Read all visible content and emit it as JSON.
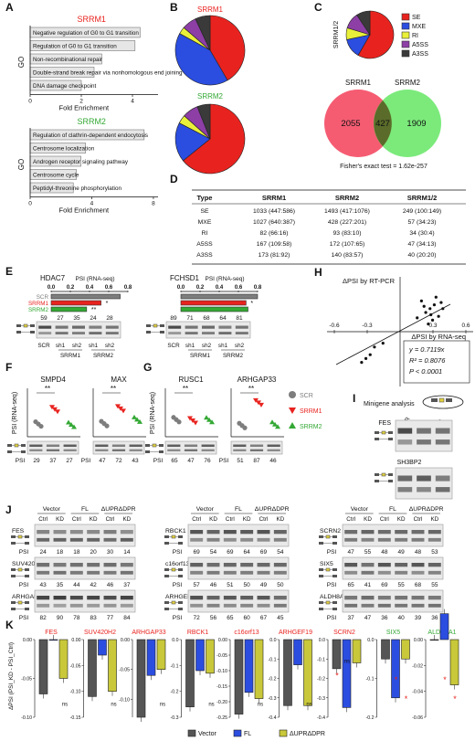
{
  "panel_letters": {
    "A": "A",
    "B": "B",
    "C": "C",
    "D": "D",
    "E": "E",
    "F": "F",
    "G": "G",
    "H": "H",
    "I": "I",
    "J": "J",
    "K": "K"
  },
  "colors": {
    "srrm1": "#e8231f",
    "srrm2": "#33a834",
    "scr": "#7d7d7d",
    "bar_fill": "#e6e6e6",
    "mxe": "#2b4de0",
    "ri": "#e9f03a",
    "a5ss": "#8d3fa6",
    "a3ss": "#3a3a3a",
    "vector": "#555555",
    "fl": "#2b4de0",
    "dupr": "#c9c83a"
  },
  "panelA": {
    "ylabel": "GO",
    "xlabel": "Fold Enrichment",
    "srrm1": {
      "title": "SRRM1",
      "ticks": [
        "0",
        "2",
        "4"
      ],
      "xmax": 5,
      "terms": [
        "Negative regulation of G0 to G1 transition",
        "Regulation of G0 to G1 transition",
        "Non-recombinational repair",
        "Double-strand break repair via nonhomologous end joining",
        "DNA damage checkpoint"
      ],
      "values": [
        4.3,
        4.1,
        2.8,
        2.5,
        2.0
      ]
    },
    "srrm2": {
      "title": "SRRM2",
      "ticks": [
        "0",
        "4",
        "8"
      ],
      "xmax": 8.3,
      "terms": [
        "Regulation of clathrin-dependent endocytosis",
        "Centrosome localization",
        "Androgen receptor signaling pathway",
        "Centrosome cycle",
        "Peptidyl-threonine phosphorylation"
      ],
      "values": [
        7.4,
        3.6,
        3.3,
        3.0,
        2.8
      ]
    }
  },
  "panelB": {
    "srrm1_title": "SRRM1",
    "srrm2_title": "SRRM2"
  },
  "panelC": {
    "ylabel": "SRRM1/2",
    "legend": [
      "SE",
      "MXE",
      "RI",
      "A5SS",
      "A3SS"
    ],
    "venn": {
      "left_title": "SRRM1",
      "right_title": "SRRM2",
      "left_only": "2055",
      "overlap": "427",
      "right_only": "1909"
    },
    "fisher": "Fisher's exact test = 1.62e-257"
  },
  "chart_data": [
    {
      "type": "pie",
      "title": "SRRM1",
      "categories": [
        "SE",
        "MXE",
        "RI",
        "A5SS",
        "A3SS"
      ],
      "values": [
        1033,
        1027,
        82,
        167,
        173
      ]
    },
    {
      "type": "pie",
      "title": "SRRM2",
      "categories": [
        "SE",
        "MXE",
        "RI",
        "A5SS",
        "A3SS"
      ],
      "values": [
        1493,
        428,
        93,
        172,
        140
      ]
    },
    {
      "type": "pie",
      "title": "",
      "categories": [
        "SE",
        "MXE",
        "RI",
        "A5SS",
        "A3SS"
      ],
      "values": [
        249,
        57,
        34,
        47,
        40
      ]
    },
    {
      "type": "bar",
      "title": "SRRM1",
      "categories": [
        "Negative regulation of G0 to G1 transition",
        "Regulation of G0 to G1 transition",
        "Non-recombinational repair",
        "Double-strand break repair via nonhomologous end joining",
        "DNA damage checkpoint"
      ],
      "values": [
        4.3,
        4.1,
        2.8,
        2.5,
        2.0
      ],
      "xlabel": "Fold Enrichment",
      "ylabel": "GO"
    },
    {
      "type": "bar",
      "title": "SRRM2",
      "categories": [
        "Regulation of clathrin-dependent endocytosis",
        "Centrosome localization",
        "Androgen receptor signaling pathway",
        "Centrosome cycle",
        "Peptidyl-threonine phosphorylation"
      ],
      "values": [
        7.4,
        3.6,
        3.3,
        3.0,
        2.8
      ],
      "xlabel": "Fold Enrichment",
      "ylabel": "GO"
    },
    {
      "type": "scatter",
      "title": "",
      "xlabel": "ΔPSI by RNA-seq",
      "ylabel": "ΔPSI by RT-PCR",
      "xlim": [
        -0.6,
        0.6
      ],
      "ylim": [
        -0.6,
        0.6
      ],
      "x": [
        0.35,
        0.4,
        0.45,
        0.3,
        0.25,
        0.5,
        0.38,
        0.42,
        0.2,
        -0.35,
        -0.4,
        -0.3,
        -0.45,
        0.33,
        0.28,
        -0.2,
        0.48,
        0.36
      ],
      "y": [
        0.3,
        0.35,
        0.2,
        0.25,
        0.4,
        0.3,
        0.15,
        0.45,
        0.18,
        -0.3,
        -0.35,
        -0.2,
        -0.4,
        0.1,
        0.33,
        -0.15,
        0.38,
        0.22
      ]
    },
    {
      "type": "bar",
      "title": "",
      "xlabel": "",
      "ylabel": "ΔPSI (PSI_KD - PSI_Ctrl)",
      "categories": [
        "FES",
        "SUV420H2",
        "ARHGAP33",
        "RBCK1",
        "c16orf13",
        "ARHGEF19",
        "SCRN2",
        "SIX5",
        "ALDH8A1"
      ],
      "series": [
        {
          "name": "Vector",
          "values": [
            -0.07,
            -0.11,
            -0.13,
            -0.26,
            -0.24,
            -0.34,
            -0.15,
            -0.05,
            0.0
          ]
        },
        {
          "name": "FL",
          "values": [
            0.0,
            -0.03,
            -0.06,
            -0.12,
            -0.17,
            -0.13,
            -0.35,
            -0.15,
            0.02
          ]
        },
        {
          "name": "ΔUPRΔDPR",
          "values": [
            -0.05,
            -0.1,
            -0.05,
            -0.13,
            -0.19,
            -0.34,
            -0.12,
            -0.05,
            -0.035
          ]
        }
      ]
    }
  ],
  "panelD": {
    "headers": [
      "Type",
      "SRRM1",
      "SRRM2",
      "SRRM1/2"
    ],
    "rows": [
      [
        "SE",
        "1033 (447:586)",
        "1493 (417:1076)",
        "249 (100:149)"
      ],
      [
        "MXE",
        "1027 (640:387)",
        "428 (227:201)",
        "57 (34:23)"
      ],
      [
        "RI",
        "82 (66:16)",
        "93 (83:10)",
        "34 (30:4)"
      ],
      [
        "A5SS",
        "167 (109:58)",
        "172 (107:65)",
        "47 (34:13)"
      ],
      [
        "A3SS",
        "173 (81:92)",
        "140 (83:57)",
        "40 (20:20)"
      ]
    ]
  },
  "panelE": {
    "axis_title": "PSI (RNA-seq)",
    "ticks": [
      "0.0",
      "0.2",
      "0.4",
      "0.6",
      "0.8"
    ],
    "legend": [
      "SCR",
      "SRRM1",
      "SRRM2"
    ],
    "hdac7": {
      "gene": "HDAC7",
      "values": [
        0.72,
        0.52,
        0.37
      ],
      "sig": [
        "",
        "*",
        "**"
      ],
      "psi": [
        "59",
        "27",
        "35",
        "24",
        "28"
      ]
    },
    "fchsd1": {
      "gene": "FCHSD1",
      "values": [
        0.8,
        0.68,
        0.7
      ],
      "sig": [
        "",
        "*",
        ""
      ],
      "psi": [
        "89",
        "71",
        "68",
        "64",
        "81"
      ]
    },
    "lanes": [
      "SCR",
      "sh1",
      "sh2",
      "sh1",
      "sh2"
    ],
    "groups": [
      "SRRM1",
      "SRRM2"
    ]
  },
  "panelF": {
    "ylabel": "PSI (RNA-seq)",
    "genes": [
      "SMPD4",
      "MAX"
    ],
    "sig": [
      "**",
      "**"
    ],
    "psi_label": "PSI",
    "psi": [
      [
        "29",
        "37",
        "27"
      ],
      [
        "47",
        "72",
        "43"
      ]
    ]
  },
  "panelG": {
    "ylabel": "PSI (RNA-seq)",
    "genes": [
      "RUSC1",
      "ARHGAP33"
    ],
    "sig": [
      "**",
      "**"
    ],
    "psi_label": "PSI",
    "psi": [
      [
        "65",
        "47",
        "76"
      ],
      [
        "51",
        "87",
        "46"
      ]
    ],
    "legend": [
      "SCR",
      "SRRM1",
      "SRRM2"
    ]
  },
  "panelH": {
    "ylabel": "ΔPSI by RT-PCR",
    "xlabel": "ΔPSI by RNA-seq",
    "ticks": [
      "-0.6",
      "-0.3",
      "0.3",
      "0.6"
    ],
    "eq": "y = 0.7119x",
    "r2": "R² = 0.8076",
    "p": "P < 0.0001"
  },
  "panelI": {
    "title": "Minigene analysis",
    "lanes": [
      "SCR",
      "sh1",
      "sh2"
    ],
    "genes": [
      "FES",
      "SH3BP2"
    ]
  },
  "panelJ": {
    "header_groups": [
      "Vector",
      "FL",
      "ΔUPRΔDPR"
    ],
    "header_lanes": [
      "Ctrl",
      "KD",
      "Ctrl",
      "KD",
      "Ctrl",
      "KD"
    ],
    "psi_label": "PSI",
    "genes": [
      {
        "name": "FES",
        "psi": [
          "24",
          "18",
          "18",
          "20",
          "30",
          "14"
        ]
      },
      {
        "name": "SUV420H2",
        "psi": [
          "43",
          "35",
          "44",
          "42",
          "46",
          "37"
        ]
      },
      {
        "name": "ARHGAP33",
        "psi": [
          "82",
          "90",
          "78",
          "83",
          "77",
          "84"
        ]
      },
      {
        "name": "RBCK1",
        "psi": [
          "69",
          "54",
          "69",
          "64",
          "69",
          "54"
        ]
      },
      {
        "name": "c16orf13",
        "psi": [
          "57",
          "46",
          "51",
          "50",
          "49",
          "50"
        ]
      },
      {
        "name": "ARHGEF19",
        "psi": [
          "72",
          "56",
          "65",
          "60",
          "67",
          "45"
        ]
      },
      {
        "name": "SCRN2",
        "psi": [
          "47",
          "55",
          "48",
          "49",
          "48",
          "53"
        ]
      },
      {
        "name": "SIX5",
        "psi": [
          "65",
          "41",
          "69",
          "55",
          "68",
          "55"
        ]
      },
      {
        "name": "ALDH8A1",
        "psi": [
          "37",
          "47",
          "36",
          "40",
          "39",
          "36"
        ]
      }
    ]
  },
  "panelK": {
    "ylabel": "ΔPSI (PSI_KD - PSI_Ctrl)",
    "genes": [
      "FES",
      "SUV420H2",
      "ARHGAP33",
      "RBCK1",
      "c16orf13",
      "ARHGEF19",
      "SCRN2",
      "SIX5",
      "ALDH8A1"
    ],
    "axis_ticks": [
      [
        "0.00",
        "-0.05",
        "-0.10"
      ],
      [
        "0.00",
        "-0.05",
        "-0.10",
        "-0.15"
      ],
      [
        "0.00",
        "-0.05",
        "-0.10"
      ],
      [
        "0.0",
        "-0.1",
        "-0.2",
        "-0.3"
      ],
      [
        "0.00",
        "-0.05",
        "-0.10",
        "-0.15",
        "-0.20",
        "-0.25"
      ],
      [
        "0.0",
        "-0.1",
        "-0.2",
        "-0.3",
        "-0.4"
      ],
      [
        "0.0",
        "-0.1",
        "-0.2",
        "-0.3",
        "-0.4"
      ],
      [
        "0.0",
        "-0.1",
        "-0.2"
      ],
      [
        "0.00",
        "-0.02",
        "-0.04",
        "-0.06"
      ]
    ],
    "legend": [
      "Vector",
      "FL",
      "ΔUPRΔDPR"
    ],
    "ns": "ns",
    "star": "*"
  }
}
